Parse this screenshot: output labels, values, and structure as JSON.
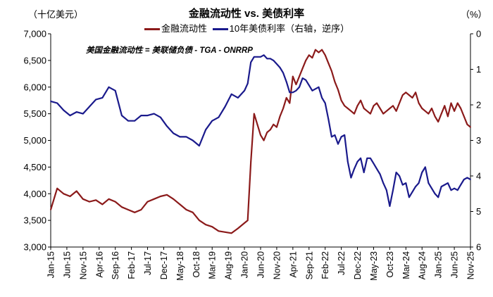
{
  "chart_data": {
    "type": "line",
    "title": "金融流动性 vs. 美债利率",
    "ylabel_left": "（十亿美元）",
    "ylabel_right": "（%）",
    "annotation": "美国金融流动性 = 美联储负债 - TGA - ONRRP",
    "ylim_left": [
      3000,
      7000
    ],
    "yticks_left": [
      "3,000",
      "3,500",
      "4,000",
      "4,500",
      "5,000",
      "5,500",
      "6,000",
      "6,500",
      "7,000"
    ],
    "ylim_right": [
      0,
      6
    ],
    "yticks_right": [
      "0",
      "1",
      "2",
      "3",
      "4",
      "5",
      "6"
    ],
    "right_axis_reversed": true,
    "xticks": [
      "Jan-15",
      "Jun-15",
      "Nov-15",
      "Apr-16",
      "Sep-16",
      "Feb-17",
      "Jul-17",
      "Dec-17",
      "May-18",
      "Oct-18",
      "Mar-19",
      "Aug-19",
      "Jan-20",
      "Jun-20",
      "Nov-20",
      "Apr-21",
      "Sep-21",
      "Feb-22",
      "Jul-22",
      "Dec-22",
      "May-23",
      "Oct-23",
      "Mar-24",
      "Aug-24",
      "Jan-25",
      "Jun-25",
      "Nov-25"
    ],
    "grid": false,
    "legend_position": "top",
    "series": [
      {
        "name": "金融流动性",
        "axis": "left",
        "color": "#8B1A1A",
        "x": [
          "2015-01",
          "2015-03",
          "2015-05",
          "2015-07",
          "2015-09",
          "2015-11",
          "2016-01",
          "2016-03",
          "2016-05",
          "2016-07",
          "2016-09",
          "2016-11",
          "2017-01",
          "2017-03",
          "2017-05",
          "2017-07",
          "2017-09",
          "2017-11",
          "2018-01",
          "2018-03",
          "2018-05",
          "2018-07",
          "2018-09",
          "2018-11",
          "2019-01",
          "2019-03",
          "2019-05",
          "2019-07",
          "2019-09",
          "2019-11",
          "2020-01",
          "2020-02",
          "2020-03",
          "2020-04",
          "2020-05",
          "2020-06",
          "2020-07",
          "2020-08",
          "2020-09",
          "2020-10",
          "2020-11",
          "2020-12",
          "2021-01",
          "2021-02",
          "2021-03",
          "2021-04",
          "2021-05",
          "2021-06",
          "2021-07",
          "2021-08",
          "2021-09",
          "2021-10",
          "2021-11",
          "2021-12",
          "2022-01",
          "2022-02",
          "2022-03",
          "2022-04",
          "2022-05",
          "2022-06",
          "2022-07",
          "2022-08",
          "2022-09",
          "2022-10",
          "2022-11",
          "2022-12",
          "2023-01",
          "2023-02",
          "2023-03",
          "2023-04",
          "2023-05",
          "2023-06",
          "2023-07",
          "2023-08",
          "2023-09",
          "2023-10",
          "2023-11",
          "2023-12",
          "2024-01",
          "2024-02",
          "2024-03",
          "2024-04",
          "2024-05",
          "2024-06",
          "2024-07",
          "2024-08",
          "2024-09",
          "2024-10",
          "2024-11",
          "2024-12",
          "2025-01",
          "2025-02",
          "2025-03",
          "2025-04",
          "2025-05",
          "2025-06",
          "2025-07",
          "2025-08",
          "2025-09",
          "2025-10",
          "2025-11"
        ],
        "values": [
          3700,
          4100,
          4000,
          3950,
          4050,
          3900,
          3850,
          3880,
          3800,
          3900,
          3850,
          3750,
          3700,
          3650,
          3700,
          3850,
          3900,
          3950,
          3980,
          3900,
          3800,
          3700,
          3650,
          3500,
          3420,
          3380,
          3300,
          3280,
          3260,
          3350,
          3450,
          3500,
          4600,
          5500,
          5300,
          5100,
          5000,
          5150,
          5200,
          5300,
          5250,
          5450,
          5600,
          5800,
          5700,
          6200,
          6050,
          6200,
          6350,
          6500,
          6600,
          6550,
          6700,
          6650,
          6700,
          6600,
          6450,
          6300,
          6100,
          5950,
          5750,
          5650,
          5600,
          5550,
          5500,
          5650,
          5750,
          5600,
          5550,
          5500,
          5650,
          5700,
          5600,
          5500,
          5550,
          5600,
          5650,
          5550,
          5700,
          5850,
          5900,
          5850,
          5800,
          5900,
          5700,
          5600,
          5550,
          5500,
          5600,
          5450,
          5350,
          5500,
          5650,
          5450,
          5700,
          5550,
          5700,
          5600,
          5450,
          5300,
          5250
        ]
      },
      {
        "name": "10年美债利率（右轴，逆序）",
        "axis": "right",
        "color": "#1A1A8C",
        "x": [
          "2015-01",
          "2015-03",
          "2015-05",
          "2015-07",
          "2015-09",
          "2015-11",
          "2016-01",
          "2016-03",
          "2016-05",
          "2016-07",
          "2016-09",
          "2016-11",
          "2017-01",
          "2017-03",
          "2017-05",
          "2017-07",
          "2017-09",
          "2017-11",
          "2018-01",
          "2018-03",
          "2018-05",
          "2018-07",
          "2018-09",
          "2018-11",
          "2019-01",
          "2019-03",
          "2019-05",
          "2019-07",
          "2019-09",
          "2019-11",
          "2020-01",
          "2020-02",
          "2020-03",
          "2020-04",
          "2020-05",
          "2020-06",
          "2020-07",
          "2020-08",
          "2020-09",
          "2020-10",
          "2020-11",
          "2020-12",
          "2021-01",
          "2021-02",
          "2021-03",
          "2021-04",
          "2021-05",
          "2021-06",
          "2021-07",
          "2021-08",
          "2021-09",
          "2021-10",
          "2021-11",
          "2021-12",
          "2022-01",
          "2022-02",
          "2022-03",
          "2022-04",
          "2022-05",
          "2022-06",
          "2022-07",
          "2022-08",
          "2022-09",
          "2022-10",
          "2022-11",
          "2022-12",
          "2023-01",
          "2023-02",
          "2023-03",
          "2023-04",
          "2023-05",
          "2023-06",
          "2023-07",
          "2023-08",
          "2023-09",
          "2023-10",
          "2023-11",
          "2023-12",
          "2024-01",
          "2024-02",
          "2024-03",
          "2024-04",
          "2024-05",
          "2024-06",
          "2024-07",
          "2024-08",
          "2024-09",
          "2024-10",
          "2024-11",
          "2024-12",
          "2025-01",
          "2025-02",
          "2025-03",
          "2025-04",
          "2025-05",
          "2025-06",
          "2025-07",
          "2025-08",
          "2025-09",
          "2025-10",
          "2025-11"
        ],
        "values": [
          1.9,
          1.95,
          2.15,
          2.3,
          2.2,
          2.25,
          2.05,
          1.85,
          1.8,
          1.5,
          1.6,
          2.3,
          2.45,
          2.45,
          2.3,
          2.3,
          2.25,
          2.35,
          2.6,
          2.8,
          2.9,
          2.9,
          3.0,
          3.15,
          2.7,
          2.45,
          2.35,
          2.05,
          1.7,
          1.8,
          1.6,
          1.4,
          0.8,
          0.65,
          0.65,
          0.65,
          0.6,
          0.7,
          0.7,
          0.75,
          0.85,
          0.95,
          1.1,
          1.35,
          1.65,
          1.65,
          1.6,
          1.5,
          1.25,
          1.3,
          1.45,
          1.6,
          1.55,
          1.5,
          1.8,
          1.95,
          2.4,
          2.9,
          2.85,
          3.1,
          2.9,
          2.85,
          3.6,
          4.05,
          3.8,
          3.6,
          3.5,
          3.9,
          3.5,
          3.5,
          3.65,
          3.8,
          3.95,
          4.2,
          4.4,
          4.85,
          4.4,
          3.9,
          4.0,
          4.25,
          4.2,
          4.6,
          4.45,
          4.3,
          4.2,
          3.9,
          3.75,
          4.2,
          4.35,
          4.5,
          4.6,
          4.3,
          4.25,
          4.2,
          4.4,
          4.35,
          4.4,
          4.25,
          4.1,
          4.05,
          4.1
        ]
      }
    ]
  }
}
